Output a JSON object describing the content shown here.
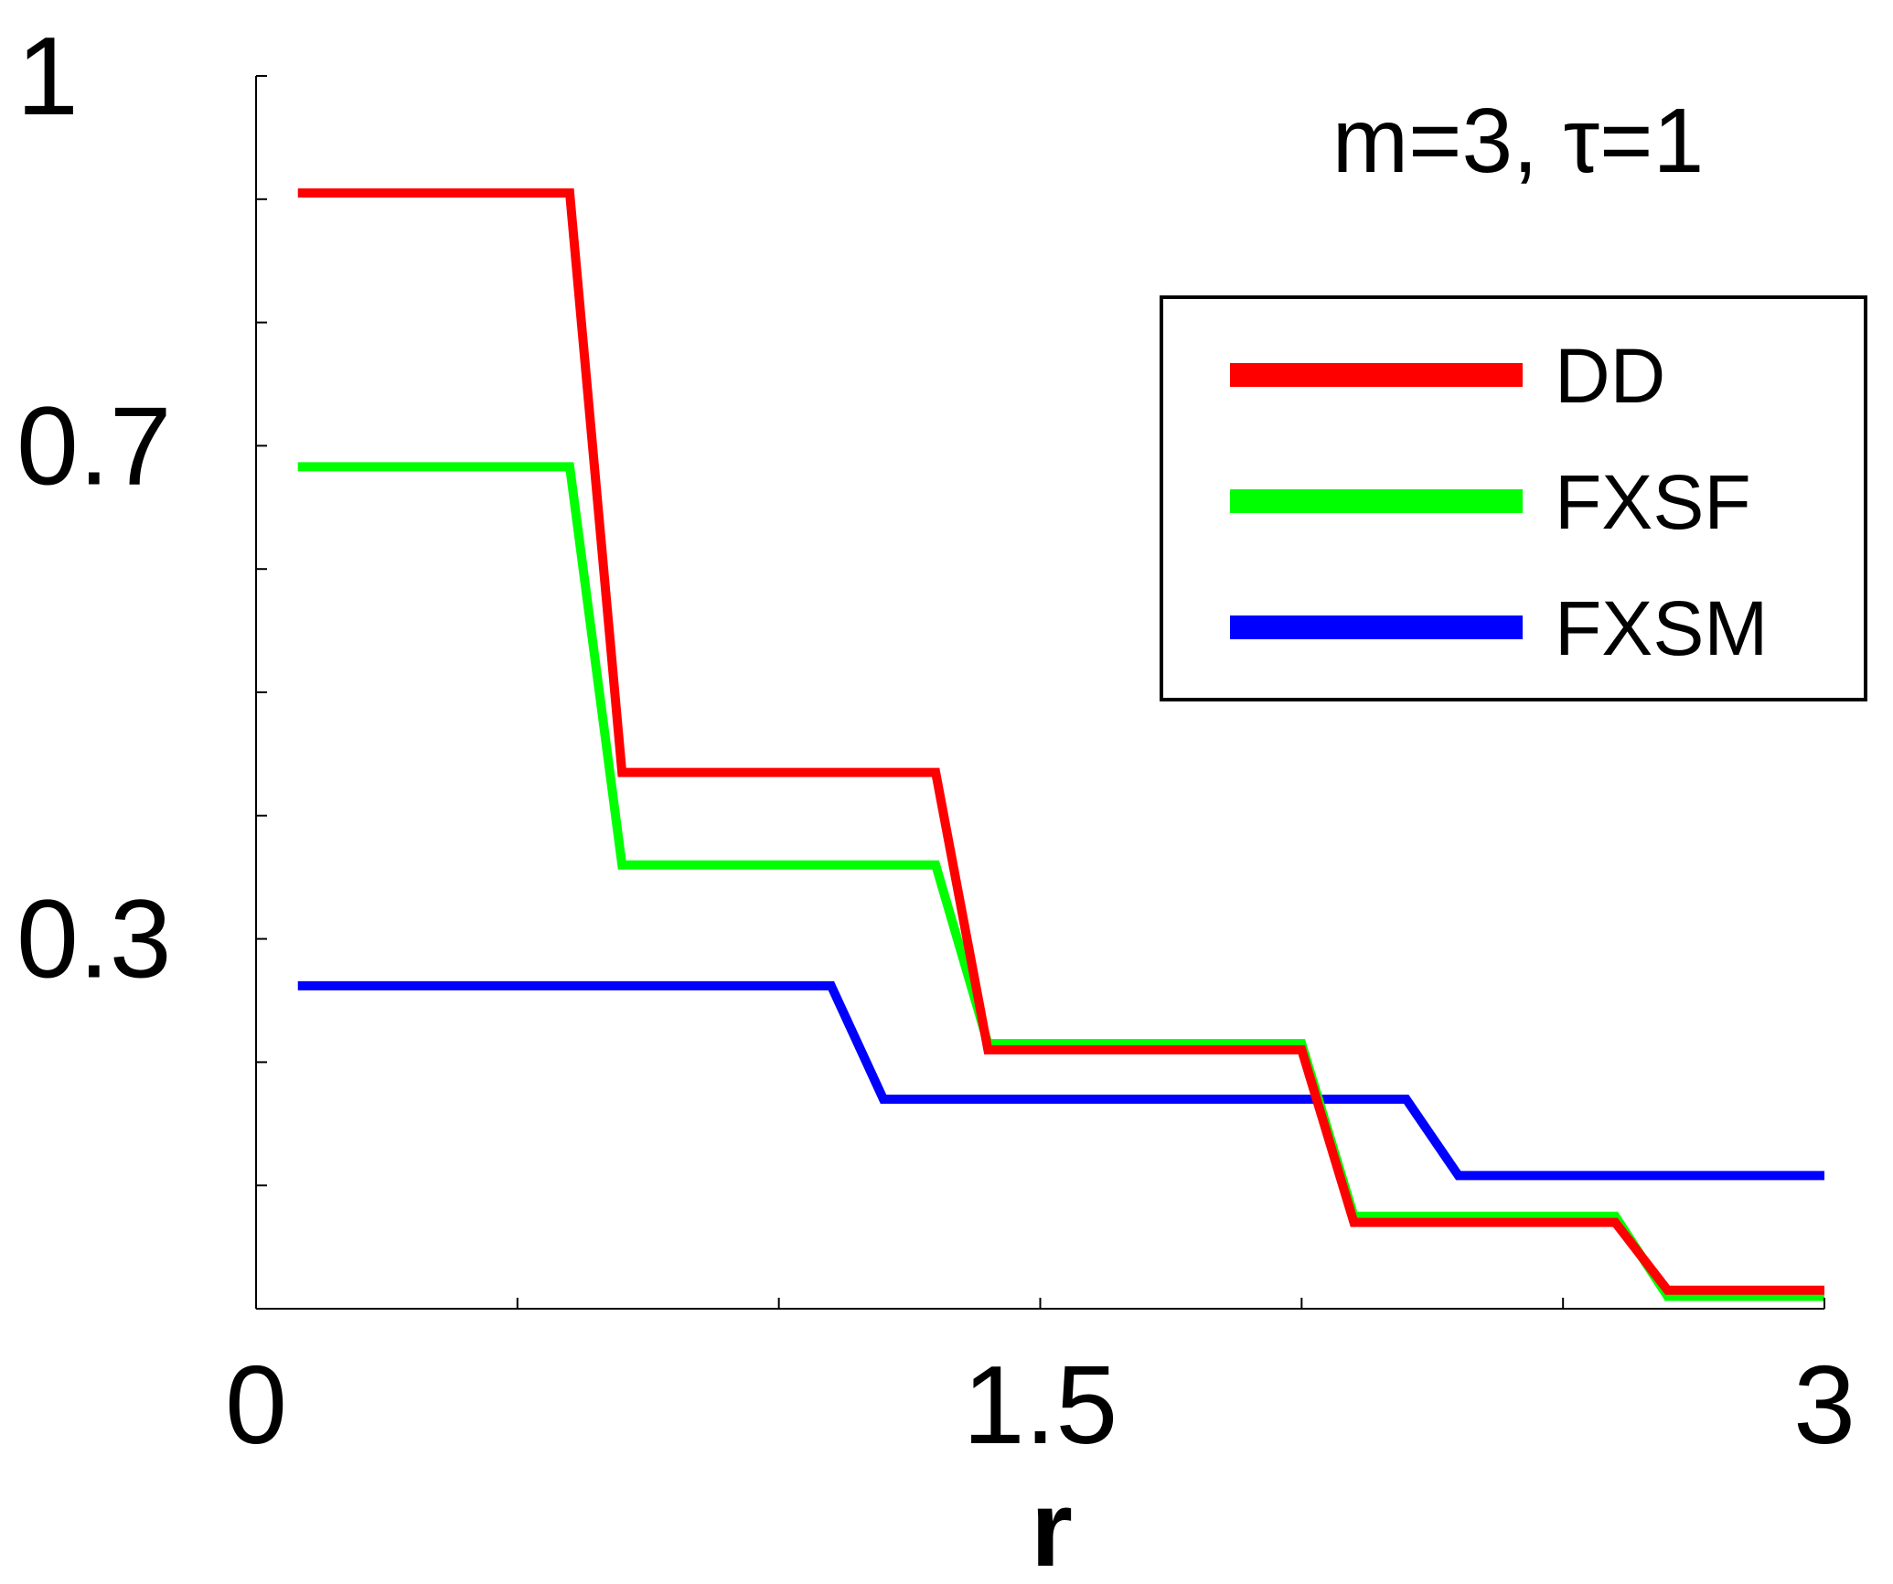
{
  "chart_data": {
    "type": "line",
    "title": "",
    "annotation": "m=3, τ=1",
    "xlabel": "r",
    "ylabel": "",
    "xlim": [
      0,
      3
    ],
    "ylim": [
      0,
      1
    ],
    "xticks": [
      0,
      0.5,
      1,
      1.5,
      2,
      2.5,
      3
    ],
    "xtick_labels": [
      {
        "value": 0,
        "label": "0"
      },
      {
        "value": 1.5,
        "label": "1.5"
      },
      {
        "value": 3,
        "label": "3"
      }
    ],
    "yticks": [
      0,
      0.1,
      0.2,
      0.3,
      0.4,
      0.5,
      0.6,
      0.7,
      0.8,
      0.9,
      1.0
    ],
    "ytick_labels": [
      {
        "value": 0.3,
        "label": "0.3"
      },
      {
        "value": 0.7,
        "label": "0.7"
      },
      {
        "value": 1,
        "label": "1"
      }
    ],
    "grid": false,
    "legend_position": "top-right",
    "series": [
      {
        "name": "DD",
        "color": "#ff0000",
        "x": [
          0.08,
          0.6,
          0.7,
          1.3,
          1.4,
          2.0,
          2.1,
          2.6,
          2.7,
          3.0
        ],
        "y": [
          0.905,
          0.905,
          0.435,
          0.435,
          0.21,
          0.21,
          0.07,
          0.07,
          0.015,
          0.015
        ]
      },
      {
        "name": "FXSF",
        "color": "#00ff00",
        "x": [
          0.08,
          0.6,
          0.7,
          1.3,
          1.4,
          2.0,
          2.1,
          2.6,
          2.7,
          3.0
        ],
        "y": [
          0.683,
          0.683,
          0.36,
          0.36,
          0.215,
          0.215,
          0.075,
          0.075,
          0.01,
          0.01
        ]
      },
      {
        "name": "FXSM",
        "color": "#0000ff",
        "x": [
          0.08,
          1.1,
          1.2,
          2.2,
          2.3,
          3.0
        ],
        "y": [
          0.262,
          0.262,
          0.17,
          0.17,
          0.108,
          0.108
        ]
      }
    ]
  }
}
